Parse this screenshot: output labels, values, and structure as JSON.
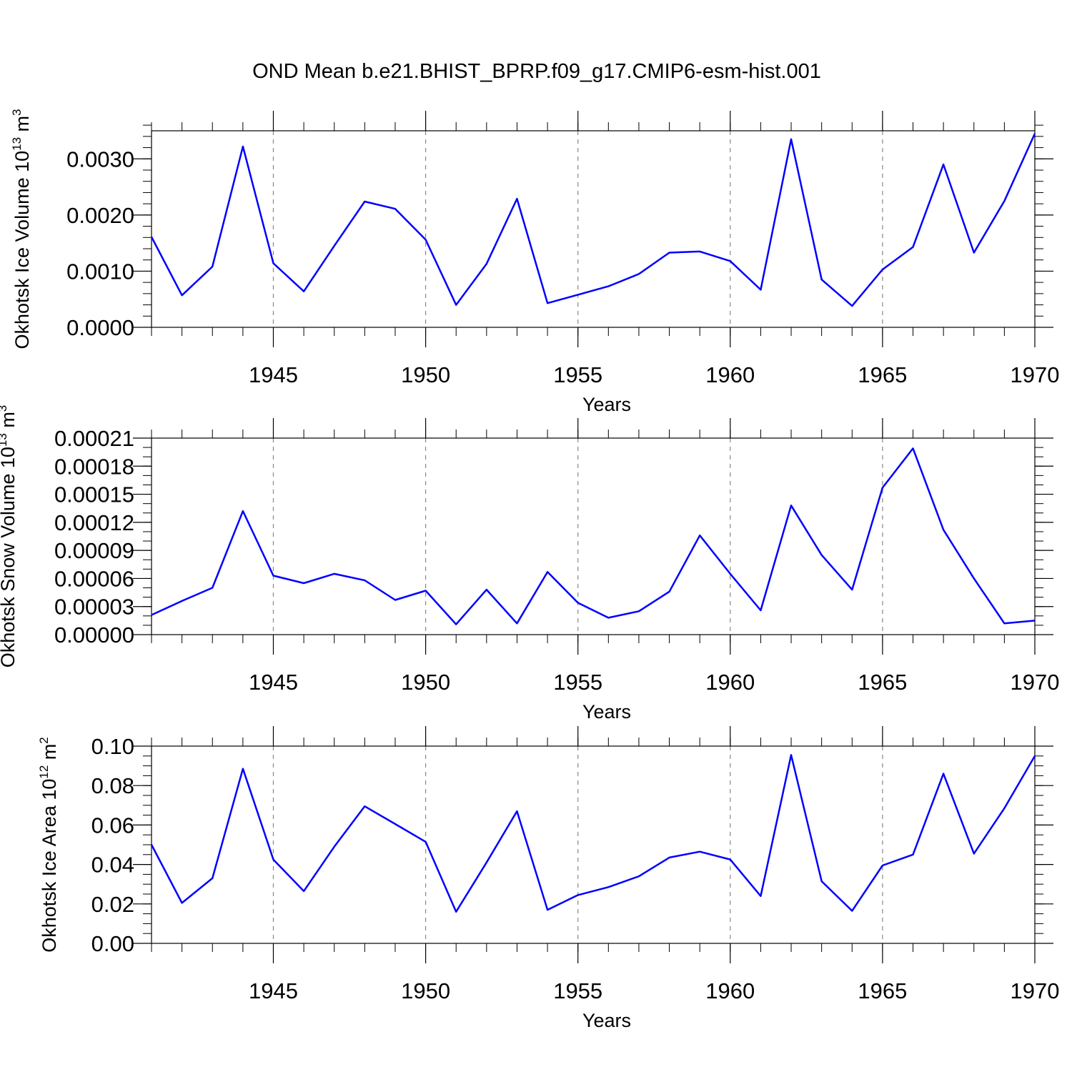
{
  "figure_title": "OND Mean b.e21.BHIST_BPRP.f09_g17.CMIP6-esm-hist.001",
  "chart_data": [
    {
      "type": "line",
      "title": "OND Mean b.e21.BHIST_BPRP.f09_g17.CMIP6-esm-hist.001",
      "xlabel": "Years",
      "ylabel_text": "Okhotsk Ice Volume 10",
      "ylabel_exp": "13",
      "ylabel_unit": " m",
      "ylabel_unit_exp": "3",
      "xlim": [
        1941,
        1970
      ],
      "ylim": [
        0,
        0.0035
      ],
      "x_ticks": [
        1945,
        1950,
        1955,
        1960,
        1965,
        1970
      ],
      "x_tick_labels": [
        "1945",
        "1950",
        "1955",
        "1960",
        "1965",
        "1970"
      ],
      "y_ticks": [
        0,
        0.001,
        0.002,
        0.003
      ],
      "y_tick_labels": [
        "0.0000",
        "0.0010",
        "0.0020",
        "0.0030"
      ],
      "y_minor_step": 0.0002,
      "grid": "x-dashed",
      "line_color": "#0000ff",
      "series": [
        {
          "name": "Okhotsk Ice Volume",
          "x": [
            1941,
            1942,
            1943,
            1944,
            1945,
            1946,
            1947,
            1948,
            1949,
            1950,
            1951,
            1952,
            1953,
            1954,
            1955,
            1956,
            1957,
            1958,
            1959,
            1960,
            1961,
            1962,
            1963,
            1964,
            1965,
            1966,
            1967,
            1968,
            1969,
            1970
          ],
          "values": [
            0.00161,
            0.00057,
            0.00108,
            0.00322,
            0.00114,
            0.00064,
            0.00145,
            0.00224,
            0.00211,
            0.00156,
            0.0004,
            0.00113,
            0.00229,
            0.00043,
            0.00058,
            0.00073,
            0.00095,
            0.00133,
            0.00135,
            0.00118,
            0.00067,
            0.00335,
            0.00085,
            0.00038,
            0.00103,
            0.00143,
            0.0029,
            0.00133,
            0.00225,
            0.00345
          ]
        }
      ]
    },
    {
      "type": "line",
      "xlabel": "Years",
      "ylabel_text": "Okhotsk Snow Volume 10",
      "ylabel_exp": "13",
      "ylabel_unit": " m",
      "ylabel_unit_exp": "3",
      "xlim": [
        1941,
        1970
      ],
      "ylim": [
        0,
        0.00021
      ],
      "x_ticks": [
        1945,
        1950,
        1955,
        1960,
        1965,
        1970
      ],
      "x_tick_labels": [
        "1945",
        "1950",
        "1955",
        "1960",
        "1965",
        "1970"
      ],
      "y_ticks": [
        0,
        3e-05,
        6e-05,
        9e-05,
        0.00012,
        0.00015,
        0.00018,
        0.00021
      ],
      "y_tick_labels": [
        "0.00000",
        "0.00003",
        "0.00006",
        "0.00009",
        "0.00012",
        "0.00015",
        "0.00018",
        "0.00021"
      ],
      "y_minor_step": 1e-05,
      "grid": "x-dashed",
      "line_color": "#0000ff",
      "series": [
        {
          "name": "Okhotsk Snow Volume",
          "x": [
            1941,
            1942,
            1943,
            1944,
            1945,
            1946,
            1947,
            1948,
            1949,
            1950,
            1951,
            1952,
            1953,
            1954,
            1955,
            1956,
            1957,
            1958,
            1959,
            1960,
            1961,
            1962,
            1963,
            1964,
            1965,
            1966,
            1967,
            1968,
            1969,
            1970
          ],
          "values": [
            2.1e-05,
            3.6e-05,
            5e-05,
            0.000132,
            6.3e-05,
            5.5e-05,
            6.5e-05,
            5.8e-05,
            3.7e-05,
            4.7e-05,
            1.1e-05,
            4.8e-05,
            1.2e-05,
            6.7e-05,
            3.4e-05,
            1.8e-05,
            2.5e-05,
            4.6e-05,
            0.000106,
            6.5e-05,
            2.6e-05,
            0.000138,
            8.5e-05,
            4.8e-05,
            0.000157,
            0.000199,
            0.000112,
            6e-05,
            1.2e-05,
            1.5e-05
          ]
        }
      ]
    },
    {
      "type": "line",
      "xlabel": "Years",
      "ylabel_text": "Okhotsk Ice Area 10",
      "ylabel_exp": "12",
      "ylabel_unit": " m",
      "ylabel_unit_exp": "2",
      "xlim": [
        1941,
        1970
      ],
      "ylim": [
        0,
        0.1
      ],
      "x_ticks": [
        1945,
        1950,
        1955,
        1960,
        1965,
        1970
      ],
      "x_tick_labels": [
        "1945",
        "1950",
        "1955",
        "1960",
        "1965",
        "1970"
      ],
      "y_ticks": [
        0,
        0.02,
        0.04,
        0.06,
        0.08,
        0.1
      ],
      "y_tick_labels": [
        "0.00",
        "0.02",
        "0.04",
        "0.06",
        "0.08",
        "0.10"
      ],
      "y_minor_step": 0.005,
      "grid": "x-dashed",
      "line_color": "#0000ff",
      "series": [
        {
          "name": "Okhotsk Ice Area",
          "x": [
            1941,
            1942,
            1943,
            1944,
            1945,
            1946,
            1947,
            1948,
            1949,
            1950,
            1951,
            1952,
            1953,
            1954,
            1955,
            1956,
            1957,
            1958,
            1959,
            1960,
            1961,
            1962,
            1963,
            1964,
            1965,
            1966,
            1967,
            1968,
            1969,
            1970
          ],
          "values": [
            0.05,
            0.0205,
            0.033,
            0.0885,
            0.0425,
            0.0265,
            0.049,
            0.0695,
            0.0605,
            0.0515,
            0.016,
            0.041,
            0.067,
            0.017,
            0.0245,
            0.0285,
            0.034,
            0.0435,
            0.0465,
            0.0425,
            0.024,
            0.0955,
            0.0315,
            0.0165,
            0.0395,
            0.045,
            0.086,
            0.0455,
            0.0685,
            0.095
          ]
        }
      ]
    }
  ]
}
